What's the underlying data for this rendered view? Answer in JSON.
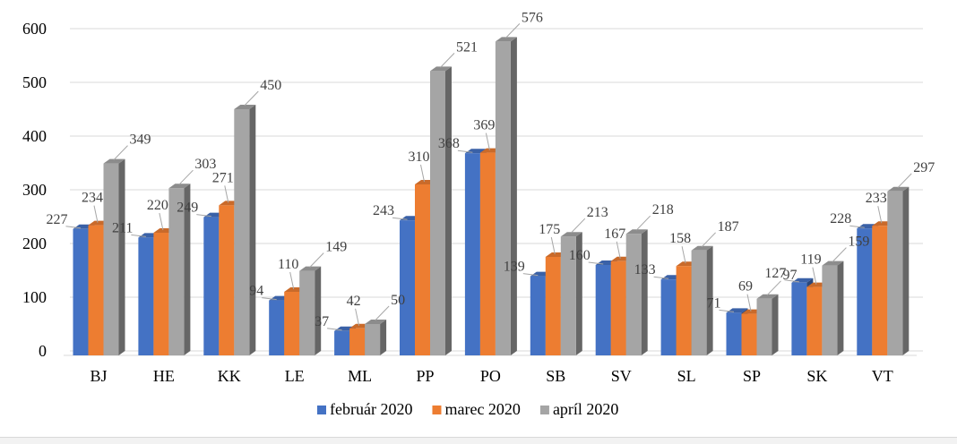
{
  "chart_data": {
    "type": "bar",
    "style": "3d-clustered-column",
    "categories": [
      "BJ",
      "HE",
      "KK",
      "LE",
      "ML",
      "PP",
      "PO",
      "SB",
      "SV",
      "SL",
      "SP",
      "SK",
      "VT"
    ],
    "series": [
      {
        "name": "február 2020",
        "color": "#4472c4",
        "values": [
          227,
          211,
          249,
          94,
          37,
          243,
          368,
          139,
          160,
          133,
          71,
          127,
          228
        ]
      },
      {
        "name": "marec 2020",
        "color": "#ed7d31",
        "values": [
          234,
          220,
          271,
          110,
          42,
          310,
          369,
          175,
          167,
          158,
          69,
          119,
          233
        ]
      },
      {
        "name": "apríl 2020",
        "color": "#a5a5a5",
        "values": [
          349,
          303,
          450,
          149,
          50,
          521,
          576,
          213,
          218,
          187,
          97,
          159,
          297
        ]
      }
    ],
    "yticks": [
      0,
      100,
      200,
      300,
      400,
      500,
      600
    ],
    "ylim": [
      0,
      600
    ],
    "gridlines": true,
    "legend_position": "bottom",
    "data_labels": true
  }
}
